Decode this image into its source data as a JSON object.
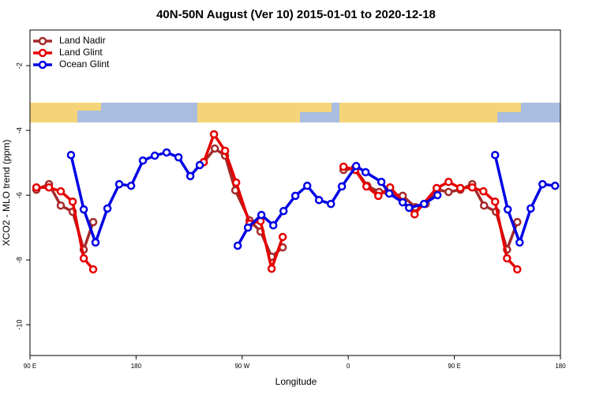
{
  "chart_data": {
    "type": "line",
    "title": "40N-50N August (Ver 10)   2015-01-01 to 2020-12-18",
    "x_label": "Longitude",
    "y_label": "XCO2 - MLO trend (ppm)",
    "xlim": [
      90,
      540
    ],
    "xticks": [
      {
        "value": 90,
        "label": "90 E"
      },
      {
        "value": 180,
        "label": "180"
      },
      {
        "value": 270,
        "label": "90 W"
      },
      {
        "value": 360,
        "label": "0"
      },
      {
        "value": 450,
        "label": "90 E"
      },
      {
        "value": 540,
        "label": "180"
      }
    ],
    "ylim": [
      -10.95,
      -0.9
    ],
    "yticks": [
      -10,
      -8,
      -6,
      -4,
      -2
    ],
    "legend": "upper left",
    "series": [
      {
        "name": "Land Nadir",
        "color": "#a52a2a",
        "x": [
          95.4,
          106.1,
          116.1,
          126.2,
          135.6,
          143.6,
          190,
          237.4,
          246.8,
          255.5,
          264.2,
          276.3,
          285.6,
          295,
          304.4,
          330,
          356,
          365.4,
          376.1,
          386.1,
          406.2,
          416.9,
          425.7,
          435.7,
          445.1,
          455.1,
          465.2,
          475.2,
          485.3,
          494.7,
          503.4
        ],
        "values": [
          -5.83,
          -5.66,
          -6.32,
          -6.51,
          -7.68,
          -6.83,
          null,
          -4.98,
          -4.56,
          -4.78,
          -5.85,
          -6.78,
          -7.12,
          -7.9,
          -7.61,
          null,
          -5.22,
          -5.17,
          -5.71,
          -5.9,
          -6.02,
          -6.37,
          -6.27,
          -5.83,
          -5.9,
          -5.83,
          -5.66,
          -6.32,
          -6.51,
          -7.68,
          -6.83
        ]
      },
      {
        "name": "Land Glint",
        "color": "#e60000",
        "x": [
          95.4,
          106.1,
          116.1,
          126.2,
          135.6,
          143.6,
          190,
          237.4,
          246.1,
          255.5,
          264.9,
          276.3,
          285.6,
          295,
          304.4,
          330,
          356,
          366,
          375.4,
          385.5,
          395.5,
          416.3,
          435,
          445.1,
          455.1,
          465.2,
          474.6,
          484.6,
          494.7,
          503.4
        ],
        "values": [
          -5.76,
          -5.76,
          -5.88,
          -6.2,
          -7.95,
          -8.29,
          null,
          -4.98,
          -4.12,
          -4.63,
          -5.61,
          -6.88,
          -6.8,
          -8.27,
          -7.29,
          null,
          -5.12,
          -5.22,
          -5.73,
          -6.02,
          -5.76,
          -6.59,
          -5.78,
          -5.59,
          -5.78,
          -5.76,
          -5.88,
          -6.2,
          -7.95,
          -8.29
        ]
      },
      {
        "name": "Ocean Glint",
        "color": "#0000e6",
        "x": [
          124.8,
          135.6,
          145.6,
          155.7,
          165.7,
          175.8,
          185.8,
          195.9,
          205.9,
          216,
          226,
          234,
          250,
          266.2,
          274.9,
          286.3,
          296.4,
          305.1,
          315.1,
          325.2,
          335.2,
          345.3,
          354.6,
          366.7,
          374.7,
          388.1,
          394.8,
          406.2,
          411.6,
          424.3,
          435.7,
          460,
          484.6,
          495.3,
          505.4,
          514.8,
          524.8,
          535.5
        ],
        "values": [
          -4.76,
          -6.44,
          -7.46,
          -6.41,
          -5.66,
          -5.71,
          -4.93,
          -4.78,
          -4.68,
          -4.83,
          -5.41,
          -5.07,
          null,
          -7.56,
          -7.0,
          -6.61,
          -6.93,
          -6.49,
          -6.02,
          -5.71,
          -6.15,
          -6.27,
          -5.73,
          -5.1,
          -5.29,
          -5.59,
          -5.95,
          -6.22,
          -6.39,
          -6.27,
          -6.0,
          null,
          -4.76,
          -6.44,
          -7.46,
          -6.41,
          -5.66,
          -5.71
        ]
      }
    ]
  }
}
